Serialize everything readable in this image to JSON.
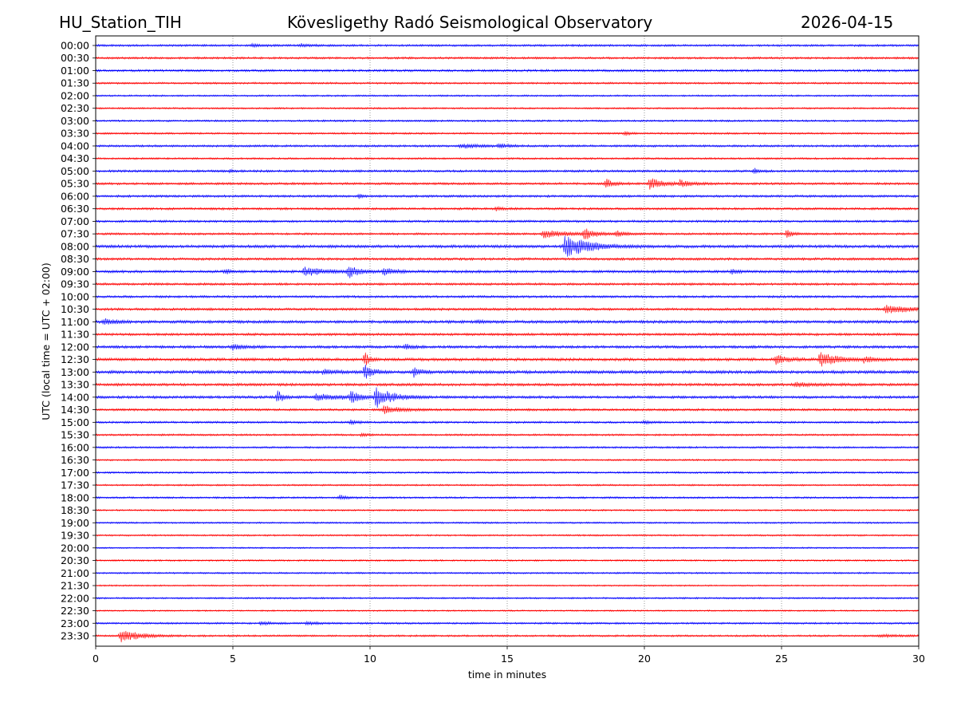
{
  "header": {
    "station": "HU_Station_TIH",
    "observatory": "Kövesligethy Radó Seismological Observatory",
    "date": "2026-04-15"
  },
  "chart_data": {
    "type": "line",
    "title": "Kövesligethy Radó Seismological Observatory",
    "xlabel": "time in minutes",
    "ylabel": "UTC (local time = UTC + 02:00)",
    "xlim": [
      0,
      30
    ],
    "xticks": [
      "0",
      "5",
      "10",
      "15",
      "20",
      "25",
      "30"
    ],
    "grid": "vertical dotted at 5-minute intervals",
    "colors": {
      "even_rows": "#0000ff",
      "odd_rows": "#ff0000",
      "grid": "#808080",
      "axes": "#000000"
    },
    "rows": [
      "00:00",
      "00:30",
      "01:00",
      "01:30",
      "02:00",
      "02:30",
      "03:00",
      "03:30",
      "04:00",
      "04:30",
      "05:00",
      "05:30",
      "06:00",
      "06:30",
      "07:00",
      "07:30",
      "08:00",
      "08:30",
      "09:00",
      "09:30",
      "10:00",
      "10:30",
      "11:00",
      "11:30",
      "12:00",
      "12:30",
      "13:00",
      "13:30",
      "14:00",
      "14:30",
      "15:00",
      "15:30",
      "16:00",
      "16:30",
      "17:00",
      "17:30",
      "18:00",
      "18:30",
      "19:00",
      "19:30",
      "20:00",
      "20:30",
      "21:00",
      "21:30",
      "22:00",
      "22:30",
      "23:00",
      "23:30"
    ],
    "noise_levels": [
      1.0,
      1.0,
      1.1,
      0.9,
      0.8,
      0.8,
      0.9,
      0.9,
      1.0,
      0.9,
      1.1,
      1.1,
      1.1,
      1.1,
      1.1,
      1.0,
      1.4,
      1.2,
      1.3,
      1.1,
      1.1,
      1.2,
      1.4,
      1.2,
      1.3,
      1.4,
      1.5,
      1.3,
      1.3,
      1.1,
      1.0,
      0.9,
      0.9,
      0.8,
      0.9,
      0.8,
      0.9,
      0.8,
      0.8,
      0.8,
      0.7,
      0.8,
      0.8,
      0.7,
      0.8,
      0.7,
      0.9,
      0.9
    ],
    "events": [
      {
        "row": "00:00",
        "minute": 5.7,
        "amplitude": 2.0,
        "duration": 0.4
      },
      {
        "row": "00:00",
        "minute": 7.5,
        "amplitude": 2.0,
        "duration": 0.4
      },
      {
        "row": "03:30",
        "minute": 19.3,
        "amplitude": 3.0,
        "duration": 0.2
      },
      {
        "row": "04:00",
        "minute": 13.3,
        "amplitude": 2.5,
        "duration": 1.0
      },
      {
        "row": "04:00",
        "minute": 14.7,
        "amplitude": 2.5,
        "duration": 0.5
      },
      {
        "row": "05:00",
        "minute": 4.9,
        "amplitude": 2.0,
        "duration": 0.2
      },
      {
        "row": "05:00",
        "minute": 24.0,
        "amplitude": 3.0,
        "duration": 0.3
      },
      {
        "row": "05:30",
        "minute": 18.6,
        "amplitude": 6.0,
        "duration": 0.4
      },
      {
        "row": "05:30",
        "minute": 20.2,
        "amplitude": 8.0,
        "duration": 0.6
      },
      {
        "row": "05:30",
        "minute": 21.3,
        "amplitude": 4.0,
        "duration": 0.6
      },
      {
        "row": "06:00",
        "minute": 9.6,
        "amplitude": 2.5,
        "duration": 0.2
      },
      {
        "row": "06:30",
        "minute": 14.6,
        "amplitude": 2.0,
        "duration": 0.3
      },
      {
        "row": "07:30",
        "minute": 16.3,
        "amplitude": 5.0,
        "duration": 1.2
      },
      {
        "row": "07:30",
        "minute": 17.8,
        "amplitude": 8.0,
        "duration": 0.5
      },
      {
        "row": "07:30",
        "minute": 19.0,
        "amplitude": 3.5,
        "duration": 0.6
      },
      {
        "row": "07:30",
        "minute": 25.2,
        "amplitude": 6.0,
        "duration": 0.3
      },
      {
        "row": "08:00",
        "minute": 17.1,
        "amplitude": 14.0,
        "duration": 1.2
      },
      {
        "row": "09:00",
        "minute": 4.7,
        "amplitude": 3.0,
        "duration": 0.3
      },
      {
        "row": "09:00",
        "minute": 7.6,
        "amplitude": 5.0,
        "duration": 1.2
      },
      {
        "row": "09:00",
        "minute": 9.2,
        "amplitude": 8.0,
        "duration": 0.5
      },
      {
        "row": "09:00",
        "minute": 10.5,
        "amplitude": 4.0,
        "duration": 0.6
      },
      {
        "row": "09:00",
        "minute": 23.2,
        "amplitude": 3.0,
        "duration": 0.3
      },
      {
        "row": "10:30",
        "minute": 28.8,
        "amplitude": 5.0,
        "duration": 1.2
      },
      {
        "row": "11:00",
        "minute": 0.3,
        "amplitude": 3.5,
        "duration": 0.6
      },
      {
        "row": "11:00",
        "minute": 13.9,
        "amplitude": 2.0,
        "duration": 0.3
      },
      {
        "row": "12:00",
        "minute": 5.0,
        "amplitude": 3.5,
        "duration": 0.6
      },
      {
        "row": "12:00",
        "minute": 11.3,
        "amplitude": 4.0,
        "duration": 0.3
      },
      {
        "row": "12:30",
        "minute": 9.8,
        "amplitude": 10.0,
        "duration": 0.2
      },
      {
        "row": "12:30",
        "minute": 24.8,
        "amplitude": 5.0,
        "duration": 0.6
      },
      {
        "row": "12:30",
        "minute": 26.4,
        "amplitude": 9.0,
        "duration": 0.9
      },
      {
        "row": "12:30",
        "minute": 28.0,
        "amplitude": 3.0,
        "duration": 0.6
      },
      {
        "row": "13:00",
        "minute": 9.8,
        "amplitude": 9.0,
        "duration": 0.4
      },
      {
        "row": "13:00",
        "minute": 8.3,
        "amplitude": 3.0,
        "duration": 0.6
      },
      {
        "row": "13:00",
        "minute": 11.6,
        "amplitude": 7.0,
        "duration": 0.3
      },
      {
        "row": "13:30",
        "minute": 25.5,
        "amplitude": 2.5,
        "duration": 1.0
      },
      {
        "row": "14:00",
        "minute": 6.6,
        "amplitude": 9.0,
        "duration": 0.3
      },
      {
        "row": "14:00",
        "minute": 8.0,
        "amplitude": 4.0,
        "duration": 1.4
      },
      {
        "row": "14:00",
        "minute": 9.3,
        "amplitude": 7.0,
        "duration": 0.4
      },
      {
        "row": "14:00",
        "minute": 10.2,
        "amplitude": 13.0,
        "duration": 0.8
      },
      {
        "row": "14:30",
        "minute": 10.5,
        "amplitude": 5.0,
        "duration": 0.8
      },
      {
        "row": "15:00",
        "minute": 9.3,
        "amplitude": 3.0,
        "duration": 0.3
      },
      {
        "row": "15:00",
        "minute": 20.0,
        "amplitude": 2.5,
        "duration": 0.3
      },
      {
        "row": "15:30",
        "minute": 9.7,
        "amplitude": 2.5,
        "duration": 0.3
      },
      {
        "row": "18:00",
        "minute": 8.9,
        "amplitude": 3.0,
        "duration": 0.4
      },
      {
        "row": "23:00",
        "minute": 6.0,
        "amplitude": 2.0,
        "duration": 0.6
      },
      {
        "row": "23:00",
        "minute": 7.7,
        "amplitude": 2.0,
        "duration": 0.5
      },
      {
        "row": "23:30",
        "minute": 0.9,
        "amplitude": 9.0,
        "duration": 0.9
      },
      {
        "row": "23:30",
        "minute": 28.6,
        "amplitude": 1.5,
        "duration": 1.0
      }
    ]
  }
}
